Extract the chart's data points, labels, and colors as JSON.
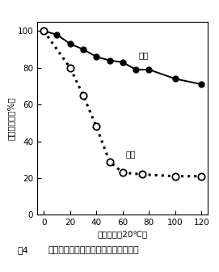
{
  "weight_x": [
    0,
    10,
    20,
    30,
    40,
    50,
    60,
    70,
    80,
    100,
    120
  ],
  "weight_y": [
    100,
    98,
    93,
    90,
    86,
    84,
    83,
    79,
    79,
    74,
    71
  ],
  "gloss_x": [
    0,
    20,
    30,
    40,
    50,
    60,
    75,
    100,
    120
  ],
  "gloss_y": [
    100,
    80,
    65,
    48,
    29,
    23,
    22,
    21,
    21
  ],
  "xlabel": "谯蔵時間（20℃）",
  "ylabel": "光沢・重量（%）",
  "weight_label": "重量",
  "gloss_label": "光沢",
  "caption_fig": "図4",
  "caption_text": "オウトウの谯蔵中の光沢と重量の変化",
  "xlim": [
    -5,
    125
  ],
  "ylim": [
    0,
    105
  ],
  "xticks": [
    0,
    20,
    40,
    60,
    80,
    100,
    120
  ],
  "yticks": [
    0,
    20,
    40,
    60,
    80,
    100
  ],
  "line_color": "#000000",
  "bg_color": "#ffffff"
}
